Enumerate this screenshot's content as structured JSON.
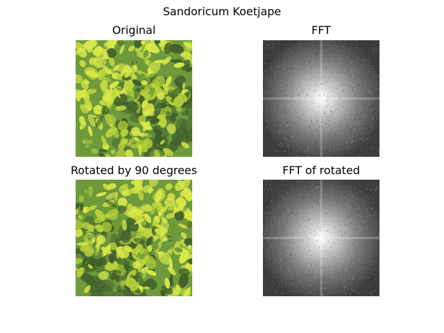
{
  "figure": {
    "title": "Sandoricum Koetjape"
  },
  "panels": [
    {
      "title": "Original",
      "kind": "photo",
      "variant": "original"
    },
    {
      "title": "FFT",
      "kind": "fft",
      "variant": "original"
    },
    {
      "title": "Rotated by 90 degrees",
      "kind": "photo",
      "variant": "rotated"
    },
    {
      "title": "FFT of rotated",
      "kind": "fft",
      "variant": "rotated"
    }
  ],
  "colors": {
    "leaf_yellow": "#d9e84a",
    "leaf_lime": "#b8d23a",
    "leaf_green": "#6f9a3c",
    "leaf_dark": "#3f5e2a",
    "fft_dark": "#3c3c3c",
    "fft_bright": "#ffffff"
  }
}
